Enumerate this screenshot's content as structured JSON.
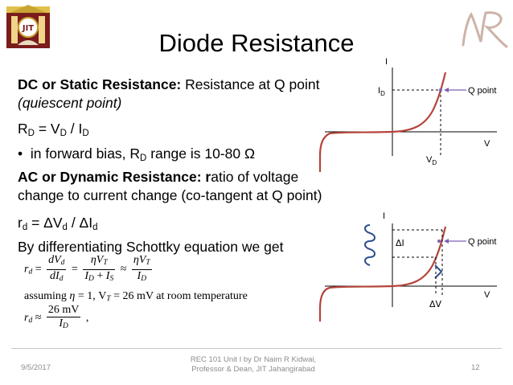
{
  "slide": {
    "title": "Diode Resistance",
    "logo": {
      "icon": "college-crest",
      "lettering": "JIT"
    },
    "watermark": {
      "icon": "nr-monogram",
      "lettering": "NR"
    },
    "lines": {
      "dc_bold": "DC or Static Resistance:",
      "dc_rest": " Resistance at Q point",
      "dc_paren": "(quiescent point)",
      "rd_formula_parts": [
        "R",
        "D",
        " = V",
        "D",
        " / I",
        "D"
      ],
      "bullet_symbol": "•",
      "bullet_text_a": "in forward bias, R",
      "bullet_sub": "D",
      "bullet_text_b": " range is 10-80 Ω",
      "ac_bold_a": "AC or Dynamic Resistance: ",
      "ac_plain_r": "r",
      "ac_rest": "atio of voltage",
      "ac_line2": "change  to current change (co-tangent at Q point)",
      "rd_small_parts": [
        "r",
        "d",
        " = ΔV",
        "d",
        " / ΔI",
        "d"
      ],
      "diff_line": "By differentiating Schottky equation we get"
    },
    "equations": {
      "eq1": {
        "lhs": "r",
        "lhs_sub": "d",
        "eq": "=",
        "f1_num": "dV",
        "f1_num_sub": "d",
        "f1_den": "dI",
        "f1_den_sub": "d",
        "eq2": "=",
        "f2_num": "ηV",
        "f2_num_sub": "T",
        "f2_den_a": "I",
        "f2_den_a_sub": "D",
        "f2_den_plus": " + ",
        "f2_den_b": "I",
        "f2_den_b_sub": "S",
        "approx": "≈",
        "f3_num": "ηV",
        "f3_num_sub": "T",
        "f3_den": "I",
        "f3_den_sub": "D"
      },
      "eq2": {
        "prefix": "assuming ",
        "eta": "η",
        "eq_a": " = 1, V",
        "vt_sub": "T",
        "eq_b": " = 26 mV at room temperature"
      },
      "eq3": {
        "lhs": "r",
        "lhs_sub": "d",
        "approx": "≈",
        "num": "26 mV",
        "den": "I",
        "den_sub": "D",
        "tail": ","
      }
    },
    "graph_top": {
      "y_axis": "I",
      "x_axis": "V",
      "id_label": "I",
      "id_sub": "D",
      "vd_label": "V",
      "vd_sub": "D",
      "q_label": "Q point"
    },
    "graph_bottom": {
      "y_axis": "I",
      "x_axis": "V",
      "delta_i": "ΔI",
      "delta_v": "ΔV",
      "q_label": "Q point"
    },
    "footer": {
      "date": "9/5/2017",
      "credit_line1": "REC 101 Unit I by Dr Naim R Kidwai,",
      "credit_line2": "Professor & Dean, JIT Jahangirabad",
      "page_number": "12"
    },
    "colors": {
      "curve": "#b5443b",
      "marker": "#7f5fb0",
      "signal": "#2e4f8c",
      "footer_text": "#8c8c8c",
      "axes": "#000000"
    }
  }
}
